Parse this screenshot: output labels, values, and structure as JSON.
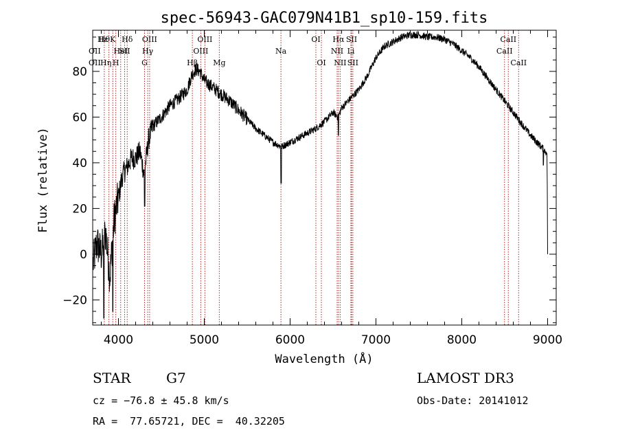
{
  "chart_data": {
    "type": "line",
    "title": "spec-56943-GAC079N41B1_sp10-159.fits",
    "xlabel": "Wavelength (Å)",
    "ylabel": "Flux (relative)",
    "xlim": [
      3700,
      9100
    ],
    "ylim": [
      -31,
      98
    ],
    "xticks": [
      4000,
      5000,
      6000,
      7000,
      8000,
      9000
    ],
    "yticks": [
      -20,
      0,
      20,
      40,
      60,
      80
    ],
    "series": [
      {
        "name": "flux",
        "x": [
          3700,
          3750,
          3800,
          3850,
          3900,
          3950,
          4000,
          4050,
          4100,
          4150,
          4200,
          4250,
          4300,
          4350,
          4400,
          4500,
          4600,
          4700,
          4800,
          4850,
          4900,
          4950,
          5000,
          5100,
          5200,
          5300,
          5400,
          5500,
          5600,
          5700,
          5800,
          5900,
          6000,
          6100,
          6200,
          6300,
          6400,
          6500,
          6560,
          6600,
          6700,
          6800,
          6900,
          7000,
          7100,
          7200,
          7300,
          7400,
          7500,
          7600,
          7700,
          7800,
          7900,
          8000,
          8100,
          8200,
          8300,
          8400,
          8500,
          8600,
          8700,
          8800,
          8900,
          8950,
          9000
        ],
        "y": [
          -5,
          5,
          0,
          10,
          -10,
          15,
          25,
          35,
          38,
          42,
          42,
          45,
          35,
          50,
          56,
          60,
          65,
          68,
          72,
          78,
          81,
          80,
          76,
          73,
          70,
          67,
          63,
          59,
          55,
          52,
          49,
          47,
          49,
          51,
          53,
          55,
          58,
          62,
          60,
          64,
          68,
          72,
          78,
          86,
          91,
          93,
          95,
          96,
          96,
          95,
          95,
          94,
          92,
          89,
          86,
          82,
          77,
          72,
          67,
          62,
          57,
          52,
          48,
          46,
          44
        ]
      }
    ],
    "dips": [
      {
        "x": 5895,
        "y": 31
      },
      {
        "x": 6563,
        "y": 52
      },
      {
        "x": 3830,
        "y": -28
      },
      {
        "x": 3935,
        "y": -25
      },
      {
        "x": 4305,
        "y": 21
      },
      {
        "x": 8950,
        "y": 39
      },
      {
        "x": 9000,
        "y": 0
      }
    ],
    "lines": [
      {
        "x": 3835,
        "row": 0,
        "label": "Hθ"
      },
      {
        "x": 3889,
        "row": 0,
        "label": ""
      },
      {
        "x": 3934,
        "row": 0,
        "label": "K"
      },
      {
        "x": 3969,
        "row": 2,
        "label": "H"
      },
      {
        "x": 4026,
        "row": 1,
        "label": "HeI"
      },
      {
        "x": 4072,
        "row": 1,
        "label": "SII"
      },
      {
        "x": 4102,
        "row": 0,
        "label": "Hδ"
      },
      {
        "x": 4304,
        "row": 2,
        "label": "G"
      },
      {
        "x": 4341,
        "row": 1,
        "label": "Hγ"
      },
      {
        "x": 4363,
        "row": 0,
        "label": "OIII"
      },
      {
        "x": 4861,
        "row": 2,
        "label": "Hβ"
      },
      {
        "x": 4959,
        "row": 1,
        "label": "OIII"
      },
      {
        "x": 5007,
        "row": 0,
        "label": "OIII"
      },
      {
        "x": 5175,
        "row": 2,
        "label": "Mg"
      },
      {
        "x": 5893,
        "row": 1,
        "label": "Na"
      },
      {
        "x": 6300,
        "row": 0,
        "label": "OI"
      },
      {
        "x": 6364,
        "row": 2,
        "label": "OI"
      },
      {
        "x": 6548,
        "row": 1,
        "label": "NII"
      },
      {
        "x": 6563,
        "row": 0,
        "label": "Hα"
      },
      {
        "x": 6583,
        "row": 2,
        "label": "NII"
      },
      {
        "x": 6708,
        "row": 1,
        "label": "Li"
      },
      {
        "x": 6716,
        "row": 0,
        "label": "SII"
      },
      {
        "x": 6731,
        "row": 2,
        "label": "SII"
      },
      {
        "x": 8498,
        "row": 1,
        "label": "CaII"
      },
      {
        "x": 8542,
        "row": 0,
        "label": "CaII"
      },
      {
        "x": 8662,
        "row": 2,
        "label": "CaII"
      }
    ],
    "left_overlap_labels": [
      "OII",
      "OII",
      "Hε",
      "Hη"
    ]
  },
  "info": {
    "object_class": "STAR",
    "subclass": "G7",
    "survey": "LAMOST DR3",
    "redshift": "cz = −76.8 ± 45.8 km/s",
    "obs_date": "Obs-Date: 20141012",
    "coords": "RA =  77.65721, DEC =  40.32205"
  }
}
